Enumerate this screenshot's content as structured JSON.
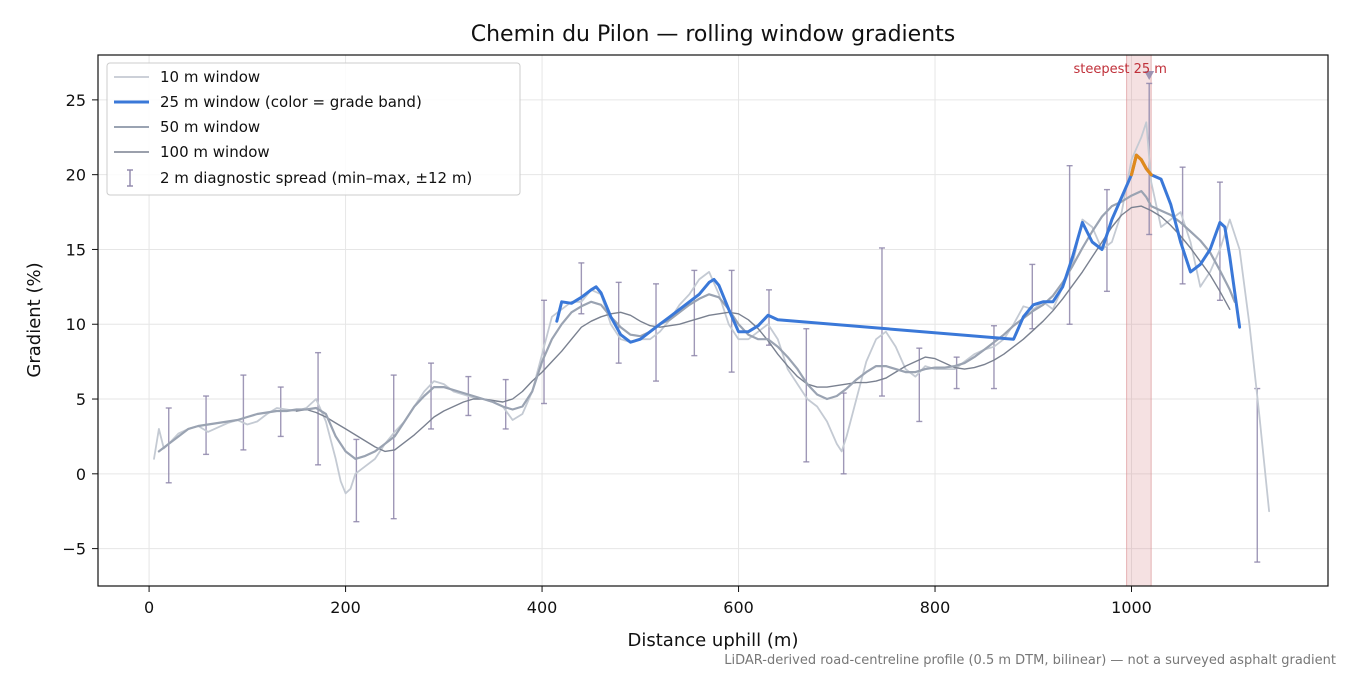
{
  "chart_data": {
    "type": "line",
    "title": "Chemin du Pilon — rolling window gradients",
    "xlabel": "Distance uphill (m)",
    "ylabel": "Gradient (%)",
    "footnote": "LiDAR-derived road-centreline profile (0.5 m DTM, bilinear) — not a surveyed asphalt gradient",
    "xlim": [
      -52,
      1200
    ],
    "ylim": [
      -7.5,
      28
    ],
    "xticks": [
      0,
      200,
      400,
      600,
      800,
      1000
    ],
    "xtick_labels": [
      "0",
      "200",
      "400",
      "600",
      "800",
      "1000"
    ],
    "yticks": [
      -5,
      0,
      5,
      10,
      15,
      20,
      25
    ],
    "ytick_labels": [
      "−5",
      "0",
      "5",
      "10",
      "15",
      "20",
      "25"
    ],
    "grid": true,
    "legend_position": "top-left",
    "legend": [
      "10 m window",
      "25 m window (color = grade band)",
      "50 m window",
      "100 m window",
      "2 m diagnostic spread (min–max, ±12 m)"
    ],
    "highlight": {
      "x0": 995,
      "x1": 1020,
      "label": "steepest 25 m",
      "marker": {
        "x": 1018,
        "y": 26.6
      }
    },
    "series": [
      {
        "name": "10 m window",
        "color": "#c4cad3",
        "x": [
          5,
          10,
          15,
          20,
          30,
          40,
          50,
          60,
          70,
          80,
          90,
          100,
          110,
          120,
          130,
          140,
          150,
          160,
          170,
          180,
          190,
          195,
          200,
          205,
          210,
          220,
          230,
          240,
          250,
          260,
          270,
          280,
          290,
          300,
          310,
          320,
          330,
          340,
          350,
          360,
          370,
          380,
          390,
          400,
          410,
          420,
          430,
          440,
          450,
          460,
          470,
          480,
          490,
          500,
          510,
          520,
          530,
          540,
          550,
          560,
          570,
          580,
          590,
          600,
          610,
          620,
          630,
          640,
          650,
          660,
          670,
          680,
          690,
          700,
          705,
          710,
          720,
          730,
          740,
          750,
          760,
          770,
          780,
          790,
          800,
          810,
          820,
          830,
          840,
          850,
          860,
          870,
          880,
          890,
          900,
          910,
          920,
          930,
          940,
          950,
          960,
          970,
          980,
          990,
          1000,
          1010,
          1015,
          1020,
          1030,
          1040,
          1050,
          1060,
          1070,
          1080,
          1090,
          1100,
          1110,
          1120,
          1130,
          1140
        ],
        "y": [
          1.0,
          3.0,
          1.7,
          2.0,
          2.7,
          3.0,
          3.2,
          2.8,
          3.1,
          3.4,
          3.6,
          3.3,
          3.5,
          4.0,
          4.4,
          4.3,
          4.2,
          4.4,
          5.0,
          3.5,
          1.0,
          -0.5,
          -1.3,
          -1.0,
          0.0,
          0.5,
          1.0,
          2.0,
          2.8,
          3.5,
          4.5,
          5.5,
          6.2,
          6.0,
          5.5,
          5.3,
          5.1,
          5.0,
          4.8,
          4.5,
          3.6,
          4.0,
          5.5,
          8.0,
          10.5,
          11.0,
          11.5,
          11.5,
          12.3,
          12.0,
          10.0,
          9.0,
          8.8,
          9.0,
          9.0,
          9.5,
          10.3,
          11.3,
          12.0,
          13.0,
          13.5,
          12.0,
          10.0,
          9.0,
          9.0,
          9.5,
          10.0,
          9.0,
          7.0,
          6.0,
          5.0,
          4.5,
          3.5,
          2.0,
          1.5,
          2.5,
          5.0,
          7.5,
          9.0,
          9.5,
          8.5,
          7.0,
          6.5,
          7.2,
          7.0,
          7.0,
          7.0,
          7.5,
          8.0,
          8.3,
          8.5,
          9.0,
          10.0,
          11.2,
          11.0,
          11.5,
          11.0,
          12.5,
          14.0,
          17.0,
          16.5,
          15.0,
          15.5,
          17.5,
          21.0,
          22.5,
          23.5,
          19.5,
          16.5,
          17.0,
          17.5,
          15.5,
          12.5,
          13.5,
          15.0,
          17.0,
          15.0,
          10.0,
          4.0,
          -2.5
        ]
      },
      {
        "name": "25 m window (color = grade band)",
        "color": "#3a78d8",
        "steep_color": "#e08a1c",
        "x": [
          415,
          420,
          430,
          440,
          450,
          455,
          460,
          470,
          480,
          490,
          500,
          510,
          520,
          530,
          540,
          550,
          560,
          570,
          575,
          580,
          590,
          600,
          610,
          620,
          630,
          640,
          880,
          890,
          900,
          910,
          920,
          930,
          940,
          950,
          960,
          970,
          980,
          990,
          1000,
          1005,
          1010,
          1015,
          1020,
          1030,
          1040,
          1050,
          1060,
          1070,
          1080,
          1090,
          1095,
          1100,
          1110
        ],
        "y": [
          10.2,
          11.5,
          11.4,
          11.8,
          12.3,
          12.5,
          12.1,
          10.5,
          9.3,
          8.8,
          9.0,
          9.5,
          10.0,
          10.5,
          11.0,
          11.5,
          12.0,
          12.8,
          13.0,
          12.6,
          11.0,
          9.5,
          9.5,
          9.9,
          10.6,
          10.3,
          9.0,
          10.5,
          11.3,
          11.5,
          11.5,
          12.5,
          14.5,
          16.8,
          15.5,
          15.0,
          17.0,
          18.5,
          20.0,
          21.3,
          21.0,
          20.4,
          20.0,
          19.7,
          18.0,
          15.5,
          13.5,
          14.0,
          15.0,
          16.8,
          16.5,
          14.5,
          9.8
        ],
        "steep_x": [
          1000,
          1005,
          1010,
          1015,
          1020
        ],
        "steep_y": [
          20.0,
          21.3,
          21.0,
          20.4,
          20.0
        ]
      },
      {
        "name": "50 m window",
        "color": "#9aa3b2",
        "x": [
          10,
          20,
          30,
          40,
          50,
          60,
          70,
          80,
          90,
          100,
          110,
          120,
          130,
          140,
          150,
          160,
          170,
          180,
          190,
          200,
          210,
          220,
          230,
          240,
          250,
          260,
          270,
          280,
          290,
          300,
          310,
          320,
          330,
          340,
          350,
          360,
          370,
          380,
          390,
          400,
          410,
          420,
          430,
          440,
          450,
          460,
          470,
          480,
          490,
          500,
          510,
          520,
          530,
          540,
          550,
          560,
          570,
          580,
          590,
          600,
          610,
          620,
          630,
          640,
          650,
          660,
          670,
          680,
          690,
          700,
          710,
          720,
          730,
          740,
          750,
          760,
          770,
          780,
          790,
          800,
          810,
          820,
          830,
          840,
          850,
          860,
          870,
          880,
          890,
          900,
          910,
          920,
          930,
          940,
          950,
          960,
          970,
          980,
          990,
          1000,
          1010,
          1015,
          1020,
          1030,
          1040,
          1050,
          1060,
          1070,
          1080,
          1090,
          1100,
          1105
        ],
        "y": [
          1.5,
          2.0,
          2.5,
          3.0,
          3.2,
          3.3,
          3.4,
          3.5,
          3.6,
          3.8,
          4.0,
          4.1,
          4.2,
          4.2,
          4.3,
          4.3,
          4.4,
          4.0,
          2.5,
          1.5,
          1.0,
          1.2,
          1.5,
          2.0,
          2.5,
          3.5,
          4.5,
          5.2,
          5.8,
          5.8,
          5.6,
          5.4,
          5.2,
          5.0,
          4.8,
          4.5,
          4.3,
          4.5,
          5.5,
          7.5,
          9.0,
          10.0,
          10.8,
          11.2,
          11.5,
          11.3,
          10.5,
          9.8,
          9.3,
          9.2,
          9.5,
          10.0,
          10.3,
          10.8,
          11.3,
          11.7,
          12.0,
          11.8,
          11.0,
          10.0,
          9.3,
          9.0,
          9.0,
          8.5,
          7.8,
          7.0,
          6.0,
          5.3,
          5.0,
          5.2,
          5.7,
          6.3,
          6.8,
          7.2,
          7.2,
          7.0,
          6.8,
          6.8,
          7.0,
          7.1,
          7.1,
          7.2,
          7.4,
          7.8,
          8.3,
          8.8,
          9.3,
          9.9,
          10.4,
          10.9,
          11.3,
          11.9,
          12.8,
          13.9,
          15.1,
          16.2,
          17.2,
          17.9,
          18.2,
          18.6,
          18.9,
          18.5,
          17.9,
          17.6,
          17.3,
          16.8,
          16.2,
          15.6,
          14.8,
          13.6,
          12.3,
          11.5
        ]
      },
      {
        "name": "100 m window",
        "color": "#7a8190",
        "x": [
          150,
          160,
          170,
          180,
          190,
          200,
          210,
          220,
          230,
          240,
          250,
          260,
          270,
          280,
          290,
          300,
          310,
          320,
          330,
          340,
          350,
          360,
          370,
          380,
          390,
          400,
          410,
          420,
          430,
          440,
          450,
          460,
          470,
          480,
          490,
          500,
          510,
          520,
          530,
          540,
          550,
          560,
          570,
          580,
          590,
          600,
          610,
          620,
          630,
          640,
          650,
          660,
          670,
          680,
          690,
          700,
          710,
          720,
          730,
          740,
          750,
          760,
          770,
          780,
          790,
          800,
          810,
          820,
          830,
          840,
          850,
          860,
          870,
          880,
          890,
          900,
          910,
          920,
          930,
          940,
          950,
          960,
          970,
          980,
          990,
          1000,
          1010,
          1020,
          1030,
          1040,
          1050,
          1060,
          1070,
          1080,
          1090,
          1100
        ],
        "y": [
          4.2,
          4.3,
          4.1,
          3.8,
          3.4,
          3.0,
          2.6,
          2.2,
          1.8,
          1.5,
          1.6,
          2.1,
          2.6,
          3.2,
          3.8,
          4.2,
          4.5,
          4.8,
          5.0,
          5.0,
          4.9,
          4.8,
          5.0,
          5.5,
          6.2,
          6.8,
          7.5,
          8.2,
          9.0,
          9.8,
          10.2,
          10.5,
          10.7,
          10.8,
          10.6,
          10.2,
          9.9,
          9.8,
          9.9,
          10.0,
          10.2,
          10.4,
          10.6,
          10.7,
          10.8,
          10.7,
          10.3,
          9.7,
          8.9,
          8.0,
          7.2,
          6.5,
          6.0,
          5.8,
          5.8,
          5.9,
          6.0,
          6.1,
          6.1,
          6.2,
          6.4,
          6.8,
          7.2,
          7.5,
          7.8,
          7.7,
          7.4,
          7.1,
          7.0,
          7.1,
          7.3,
          7.6,
          8.0,
          8.5,
          9.0,
          9.6,
          10.2,
          10.9,
          11.7,
          12.6,
          13.5,
          14.5,
          15.5,
          16.5,
          17.3,
          17.8,
          17.9,
          17.6,
          17.2,
          16.6,
          15.9,
          15.1,
          14.2,
          13.3,
          12.2,
          11.0
        ]
      }
    ],
    "spread": {
      "name": "2 m diagnostic spread (min–max, ±12 m)",
      "color": "#8e86aa",
      "bars": [
        {
          "x": 20,
          "min": -0.6,
          "max": 4.4
        },
        {
          "x": 58,
          "min": 1.3,
          "max": 5.2
        },
        {
          "x": 96,
          "min": 1.6,
          "max": 6.6
        },
        {
          "x": 134,
          "min": 2.5,
          "max": 5.8
        },
        {
          "x": 172,
          "min": 0.6,
          "max": 8.1
        },
        {
          "x": 211,
          "min": -3.2,
          "max": 2.3
        },
        {
          "x": 249,
          "min": -3.0,
          "max": 6.6
        },
        {
          "x": 287,
          "min": 3.0,
          "max": 7.4
        },
        {
          "x": 325,
          "min": 3.9,
          "max": 6.5
        },
        {
          "x": 363,
          "min": 3.0,
          "max": 6.3
        },
        {
          "x": 402,
          "min": 4.7,
          "max": 11.6
        },
        {
          "x": 440,
          "min": 10.7,
          "max": 14.1
        },
        {
          "x": 478,
          "min": 7.4,
          "max": 12.8
        },
        {
          "x": 516,
          "min": 6.2,
          "max": 12.7
        },
        {
          "x": 555,
          "min": 7.9,
          "max": 13.6
        },
        {
          "x": 593,
          "min": 6.8,
          "max": 13.6
        },
        {
          "x": 631,
          "min": 8.6,
          "max": 12.3
        },
        {
          "x": 669,
          "min": 0.8,
          "max": 9.7
        },
        {
          "x": 707,
          "min": 0.0,
          "max": 5.4
        },
        {
          "x": 746,
          "min": 5.2,
          "max": 15.1
        },
        {
          "x": 784,
          "min": 3.5,
          "max": 8.4
        },
        {
          "x": 822,
          "min": 5.7,
          "max": 7.8
        },
        {
          "x": 860,
          "min": 5.7,
          "max": 9.9
        },
        {
          "x": 899,
          "min": 9.7,
          "max": 14.0
        },
        {
          "x": 937,
          "min": 10.0,
          "max": 20.6
        },
        {
          "x": 975,
          "min": 12.2,
          "max": 19.0
        },
        {
          "x": 1018,
          "min": 16.0,
          "max": 26.1
        },
        {
          "x": 1052,
          "min": 12.7,
          "max": 20.5
        },
        {
          "x": 1090,
          "min": 11.6,
          "max": 19.5
        },
        {
          "x": 1128,
          "min": -5.9,
          "max": 5.7
        }
      ]
    }
  }
}
